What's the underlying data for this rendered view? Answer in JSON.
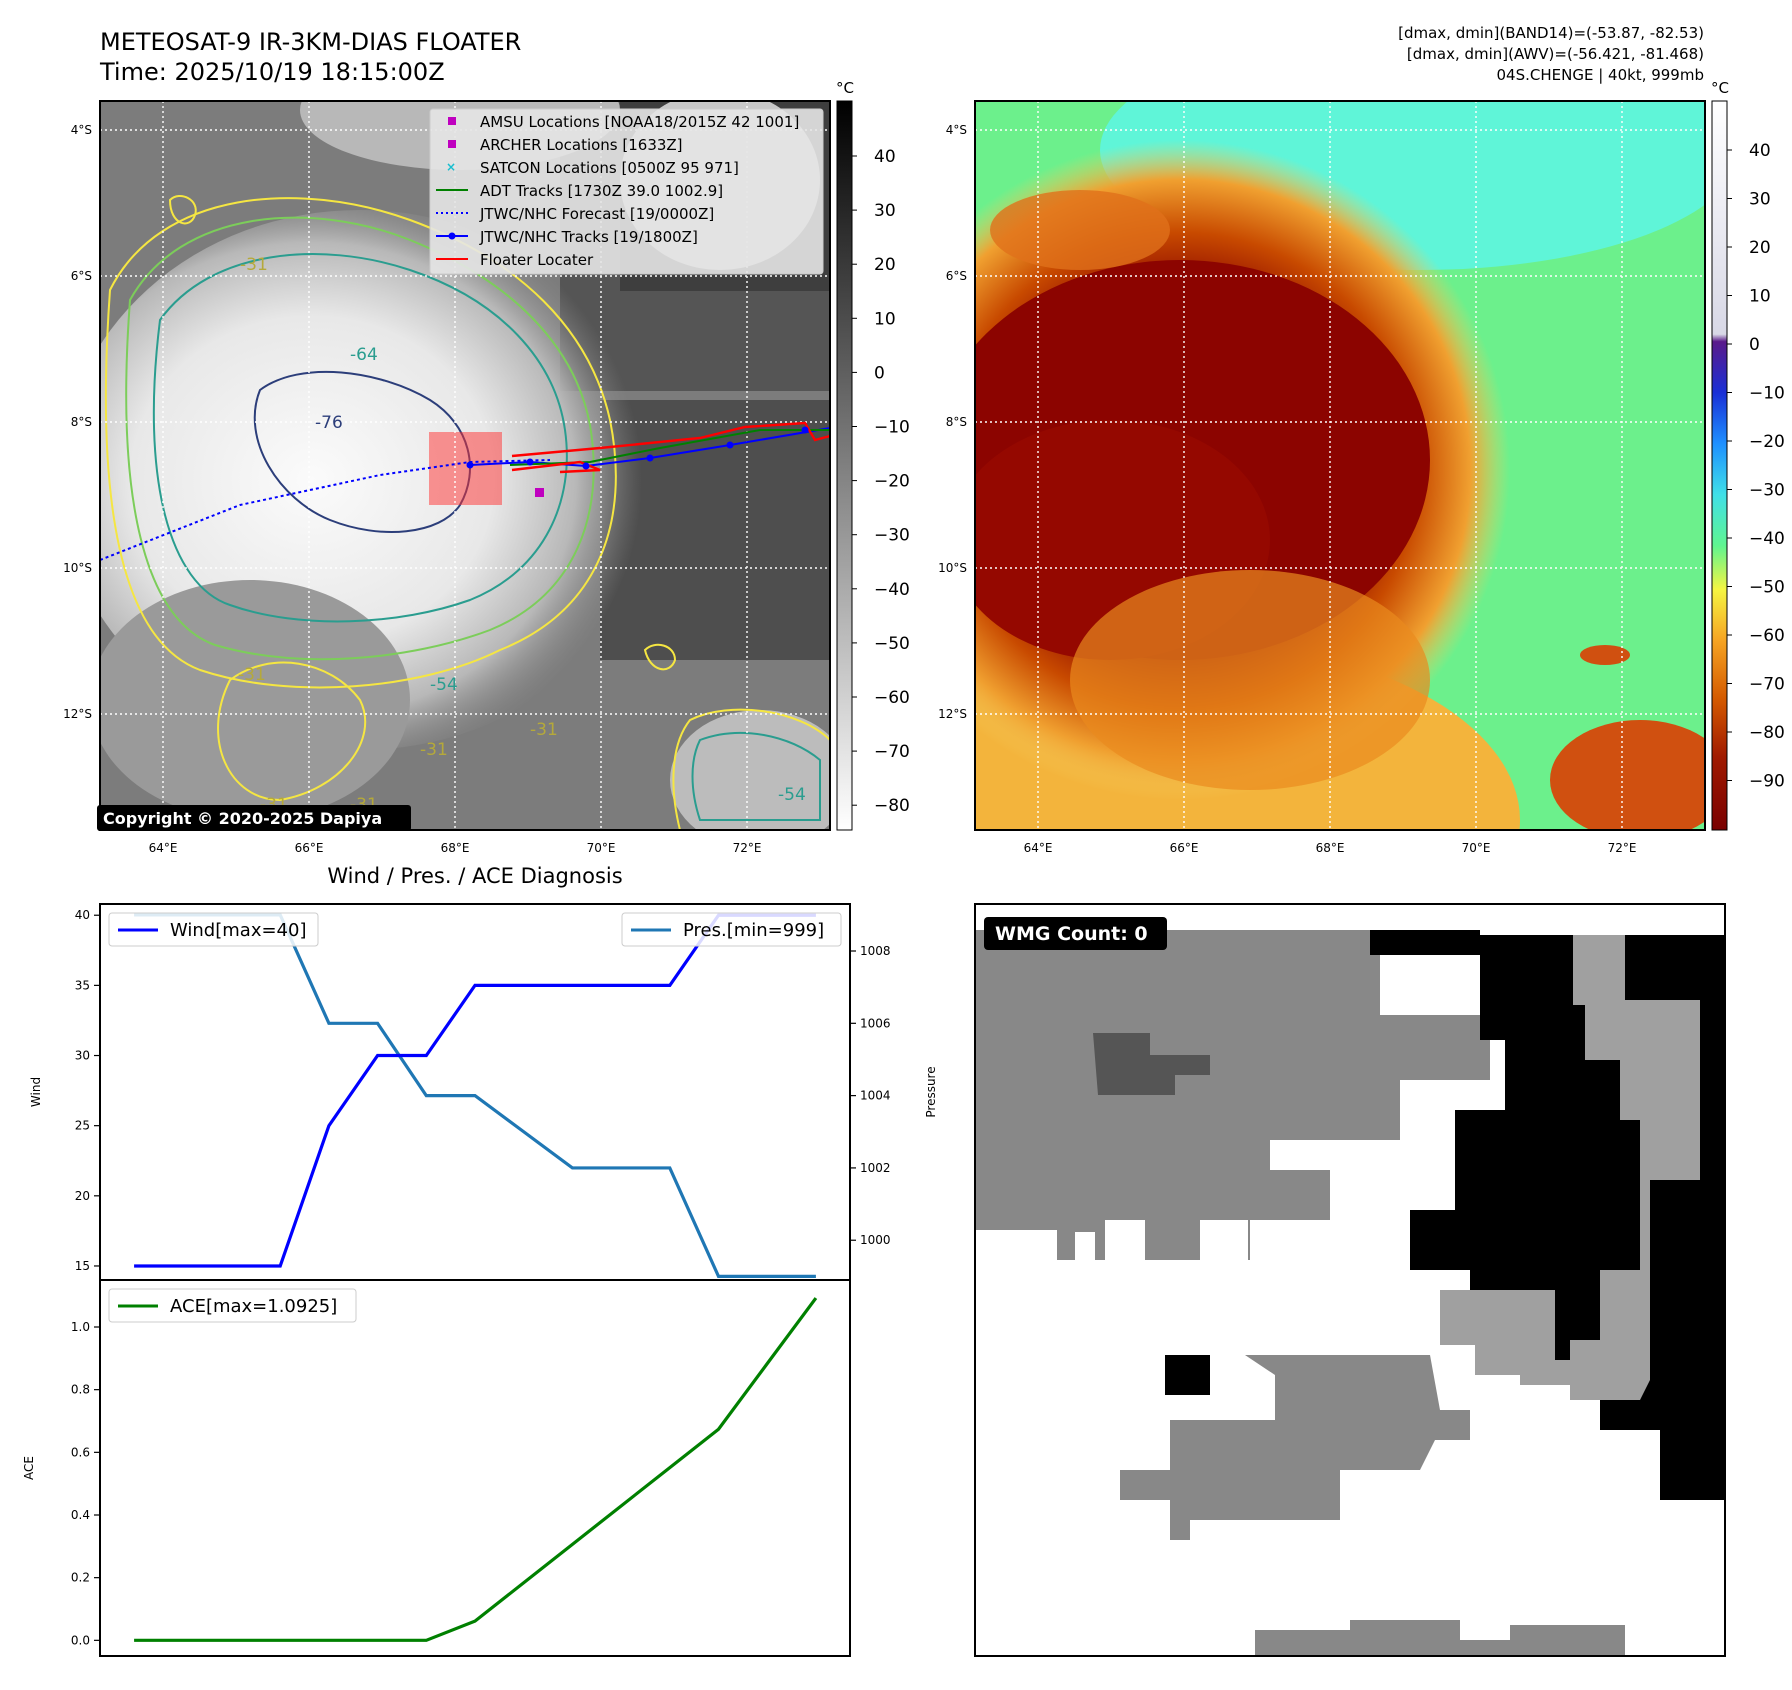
{
  "header": {
    "title_line1": "METEOSAT-9 IR-3KM-DIAS FLOATER",
    "title_line2": "Time: 2025/10/19 18:15:00Z",
    "info_line1": "[dmax, dmin](BAND14)=(-53.87, -82.53)",
    "info_line2": "[dmax, dmin](AWV)=(-56.421, -81.468)",
    "info_line3": "04S.CHENGE | 40kt, 999mb"
  },
  "colors": {
    "wind": "#0000ff",
    "pressure": "#1f77b4",
    "ace": "#008000",
    "floater": "#ff0000",
    "adt": "#008000",
    "amsu": "#bf00bf",
    "satcon": "#17becf",
    "contour_yellow": "#f5e642",
    "contour_green": "#7ccd5a",
    "contour_teal": "#2a9d8f",
    "contour_navy": "#2c3e7a"
  },
  "map_ir": {
    "lat_labels": [
      "4°S",
      "6°S",
      "8°S",
      "10°S",
      "12°S"
    ],
    "lon_labels": [
      "64°E",
      "66°E",
      "68°E",
      "70°E",
      "72°E"
    ],
    "colorbar_unit": "°C",
    "colorbar_ticks": [
      "40",
      "30",
      "20",
      "10",
      "0",
      "−10",
      "−20",
      "−30",
      "−40",
      "−50",
      "−60",
      "−70",
      "−80"
    ],
    "copyright": "Copyright © 2020-2025 Dapiya",
    "contour_labels": [
      "-64",
      "-76",
      "-54",
      "-31",
      "-31",
      "-31",
      "-31",
      "-31",
      "-54",
      "-31"
    ],
    "legend": [
      {
        "label": "AMSU Locations [NOAA18/2015Z 42 1001]",
        "marker": "square",
        "color": "#bf00bf"
      },
      {
        "label": "ARCHER Locations [1633Z]",
        "marker": "square",
        "color": "#bf00bf"
      },
      {
        "label": "SATCON Locations [0500Z 95 971]",
        "marker": "x",
        "color": "#17becf"
      },
      {
        "label": "ADT Tracks [1730Z 39.0 1002.9]",
        "marker": "line",
        "color": "#008000"
      },
      {
        "label": "JTWC/NHC Forecast [19/0000Z]",
        "marker": "dotted",
        "color": "#0000ff"
      },
      {
        "label": "JTWC/NHC Tracks [19/1800Z]",
        "marker": "line-dot",
        "color": "#0000ff"
      },
      {
        "label": "Floater Locater",
        "marker": "line",
        "color": "#ff0000"
      }
    ]
  },
  "map_awv": {
    "lat_labels": [
      "4°S",
      "6°S",
      "8°S",
      "10°S",
      "12°S"
    ],
    "lon_labels": [
      "64°E",
      "66°E",
      "68°E",
      "70°E",
      "72°E"
    ],
    "colorbar_unit": "°C",
    "colorbar_ticks": [
      "40",
      "30",
      "20",
      "10",
      "0",
      "−10",
      "−20",
      "−30",
      "−40",
      "−50",
      "−60",
      "−70",
      "−80",
      "−90"
    ]
  },
  "wmg": {
    "badge": "WMG Count: 0"
  },
  "chart_data": [
    {
      "type": "line",
      "title": "Wind / Pres. / ACE Diagnosis",
      "x": [
        0,
        1,
        2,
        3,
        4,
        5,
        6,
        7,
        8,
        9,
        10,
        11,
        12,
        13,
        14
      ],
      "series": [
        {
          "name": "Wind[max=40]",
          "axis": "left",
          "values": [
            15,
            15,
            15,
            15,
            25,
            30,
            30,
            35,
            35,
            35,
            35,
            35,
            40,
            40,
            40
          ]
        },
        {
          "name": "Pres.[min=999]",
          "axis": "right",
          "values": [
            1009,
            1009,
            1009,
            1009,
            1006,
            1006,
            1004,
            1004,
            1003,
            1002,
            1002,
            1002,
            999,
            999,
            999
          ]
        }
      ],
      "ylabel": "Wind",
      "ylabel_right": "Pressure",
      "ylim": [
        14.0,
        40.8
      ],
      "ylim_right": [
        998.9,
        1009.3
      ],
      "yticks": [
        15,
        20,
        25,
        30,
        35,
        40
      ],
      "yticks_right": [
        1000,
        1002,
        1004,
        1006,
        1008
      ],
      "legend": [
        "top-left",
        "top-right"
      ]
    },
    {
      "type": "line",
      "x": [
        0,
        1,
        2,
        3,
        4,
        5,
        6,
        7,
        8,
        9,
        10,
        11,
        12,
        13,
        14
      ],
      "series": [
        {
          "name": "ACE[max=1.0925]",
          "values": [
            0,
            0,
            0,
            0,
            0,
            0,
            0,
            0.0613,
            0.1838,
            0.3063,
            0.4288,
            0.5513,
            0.6738,
            0.8831,
            1.0925
          ]
        }
      ],
      "ylabel": "ACE",
      "ylim": [
        -0.05,
        1.15
      ],
      "yticks": [
        0.0,
        0.2,
        0.4,
        0.6,
        0.8,
        1.0
      ],
      "legend": "top-left"
    }
  ]
}
